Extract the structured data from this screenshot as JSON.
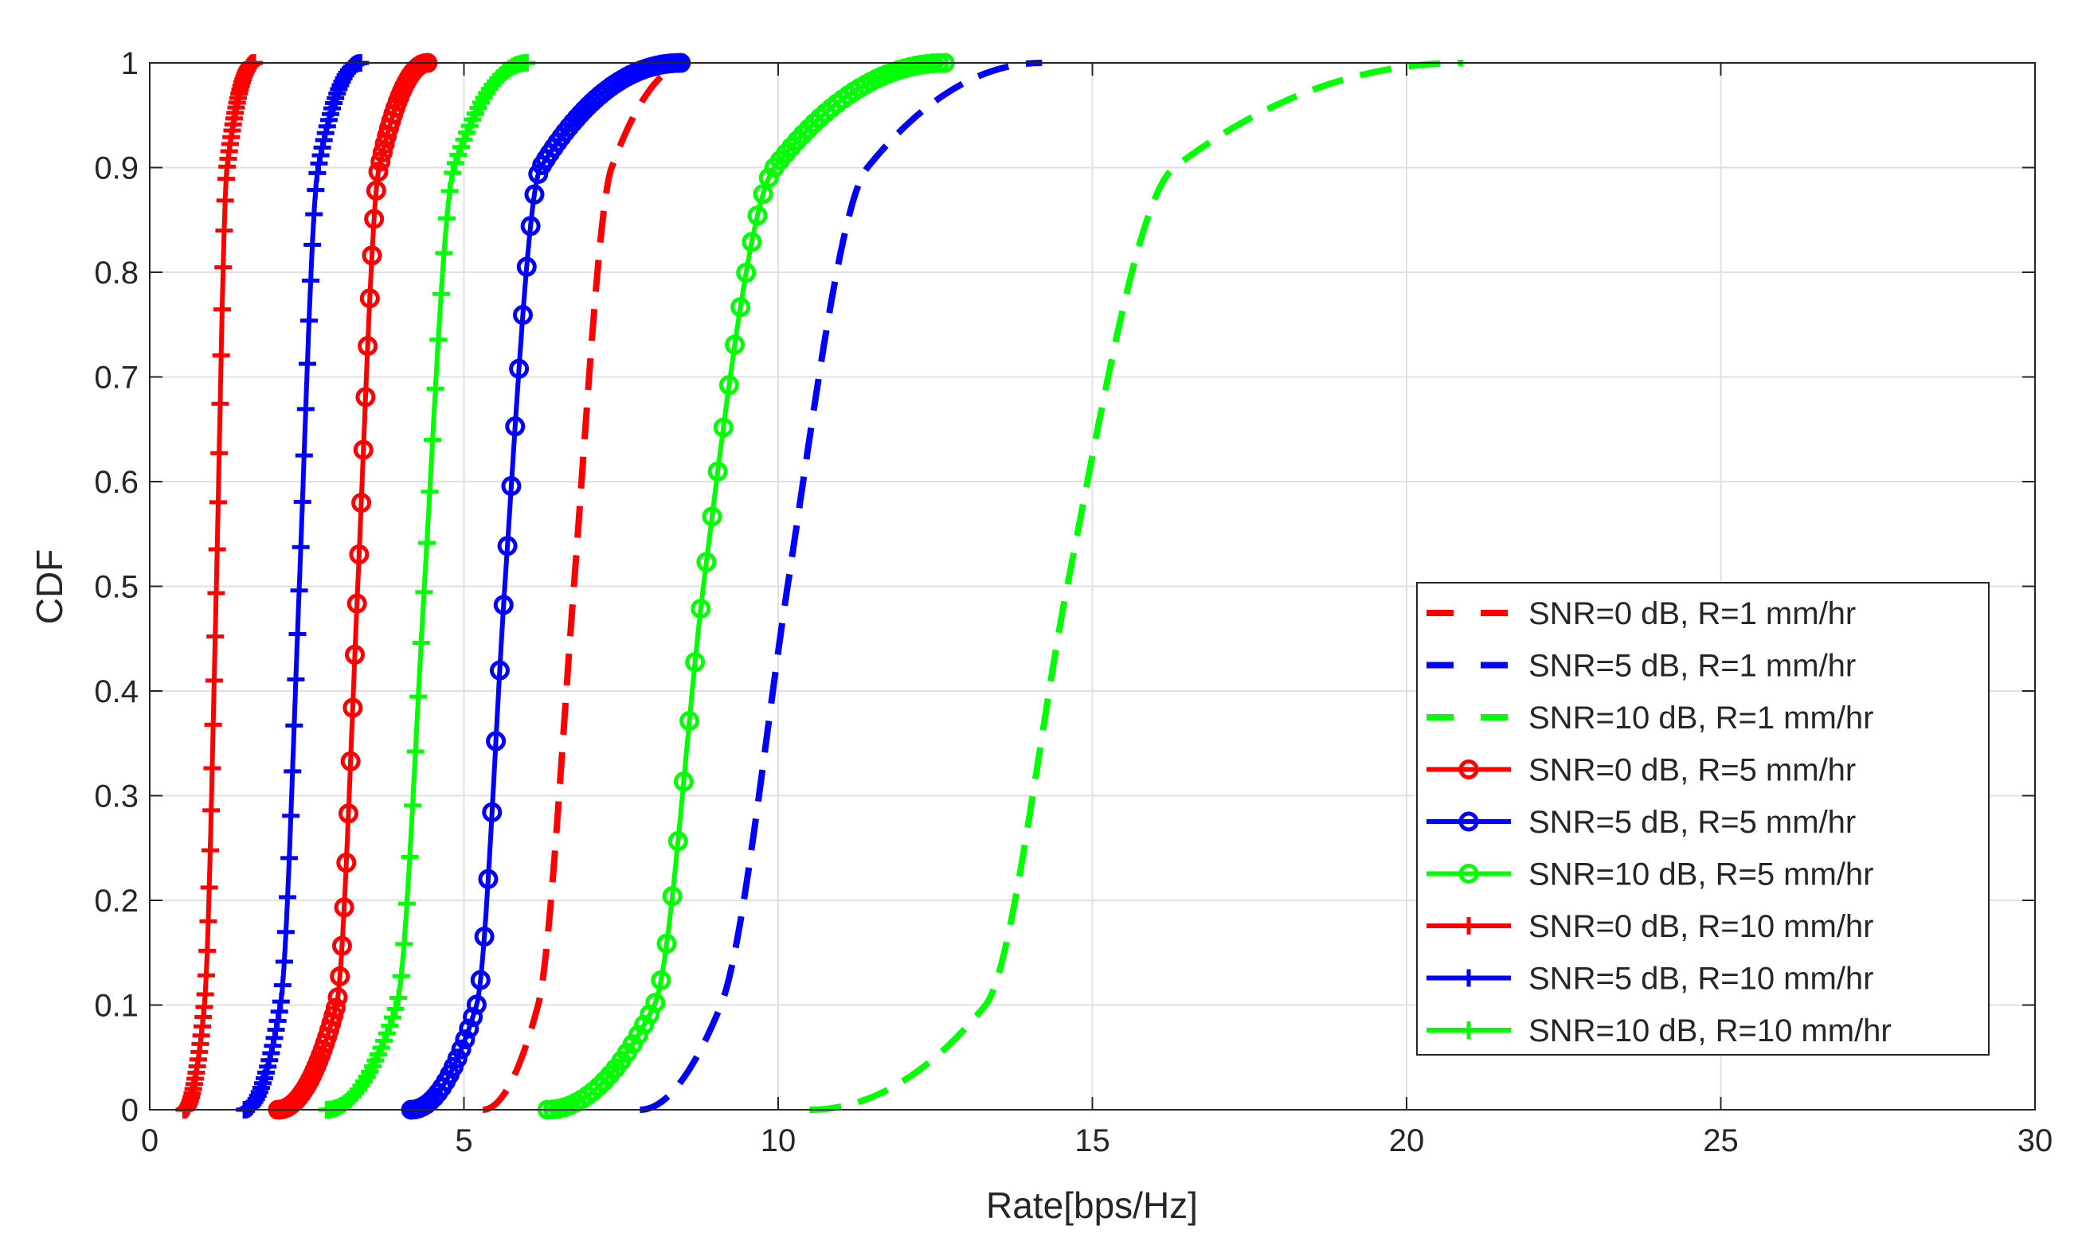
{
  "chart_data": {
    "type": "line",
    "title": "",
    "xlabel": "Rate[bps/Hz]",
    "ylabel": "CDF",
    "xlim": [
      0,
      30
    ],
    "ylim": [
      0,
      1
    ],
    "xticks": [
      0,
      5,
      10,
      15,
      20,
      25,
      30
    ],
    "yticks": [
      0,
      0.1,
      0.2,
      0.3,
      0.4,
      0.5,
      0.6,
      0.7,
      0.8,
      0.9,
      1
    ],
    "ytick_labels": [
      "0",
      "0.1",
      "0.2",
      "0.3",
      "0.4",
      "0.5",
      "0.6",
      "0.7",
      "0.8",
      "0.9",
      "1"
    ],
    "grid": true,
    "legend_position": "lower-right",
    "cdf_levels": [
      0,
      0.1,
      0.5,
      0.9,
      1
    ],
    "series": [
      {
        "name": "SNR=0 dB, R=1 mm/hr",
        "color": "#ff0000",
        "style": "dashed",
        "marker": "none",
        "x_at_levels": [
          5.3,
          6.18,
          6.75,
          7.35,
          8.6
        ]
      },
      {
        "name": "SNR=5 dB, R=1 mm/hr",
        "color": "#0000ff",
        "style": "dashed",
        "marker": "none",
        "x_at_levels": [
          7.8,
          9.09,
          10.15,
          11.42,
          14.2
        ]
      },
      {
        "name": "SNR=10 dB, R=1 mm/hr",
        "color": "#00ff00",
        "style": "dashed",
        "marker": "none",
        "x_at_levels": [
          10.5,
          13.3,
          14.6,
          16.3,
          20.9
        ]
      },
      {
        "name": "SNR=0 dB, R=5 mm/hr",
        "color": "#ff0000",
        "style": "solid",
        "marker": "circle",
        "x_at_levels": [
          2.04,
          2.97,
          3.31,
          3.65,
          4.42
        ]
      },
      {
        "name": "SNR=5 dB, R=5 mm/hr",
        "color": "#0000ff",
        "style": "solid",
        "marker": "circle",
        "x_at_levels": [
          4.16,
          5.2,
          5.65,
          6.22,
          8.45
        ]
      },
      {
        "name": "SNR=10 dB, R=5 mm/hr",
        "color": "#00ff00",
        "style": "solid",
        "marker": "circle",
        "x_at_levels": [
          6.33,
          8.03,
          8.81,
          9.94,
          12.65
        ]
      },
      {
        "name": "SNR=0 dB, R=10 mm/hr",
        "color": "#ff0000",
        "style": "solid",
        "marker": "plus",
        "x_at_levels": [
          0.55,
          0.87,
          1.06,
          1.23,
          1.66
        ]
      },
      {
        "name": "SNR=5 dB, R=10 mm/hr",
        "color": "#0000ff",
        "style": "solid",
        "marker": "plus",
        "x_at_levels": [
          1.51,
          2.08,
          2.38,
          2.68,
          3.35
        ]
      },
      {
        "name": "SNR=10 dB, R=10 mm/hr",
        "color": "#00ff00",
        "style": "solid",
        "marker": "plus",
        "x_at_levels": [
          2.82,
          3.93,
          4.37,
          4.84,
          6.0
        ]
      }
    ]
  }
}
